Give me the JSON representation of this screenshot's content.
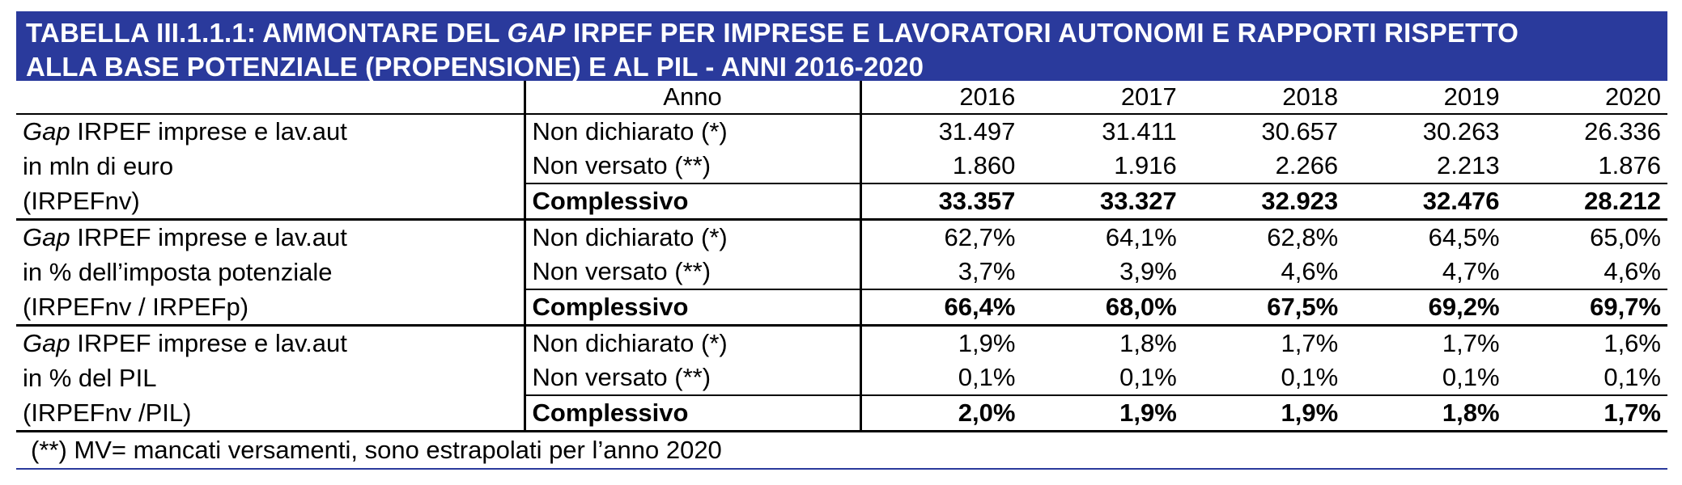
{
  "title": {
    "line1_prefix": "TABELLA III.1.1.1: AMMONTARE DEL ",
    "line1_italic": "GAP",
    "line1_suffix": " IRPEF PER IMPRESE E LAVORATORI AUTONOMI E RAPPORTI RISPETTO",
    "line2": "ALLA BASE POTENZIALE (PROPENSIONE) E AL PIL - ANNI 2016-2020"
  },
  "header": {
    "anno": "Anno",
    "years": [
      "2016",
      "2017",
      "2018",
      "2019",
      "2020"
    ]
  },
  "groups": [
    {
      "label_italic": "Gap",
      "label_line1_rest": " IRPEF imprese e lav.aut",
      "label_line2": "in mln di euro",
      "label_line3": "(IRPEFnv)",
      "rows": [
        {
          "type": "Non dichiarato (*)",
          "values": [
            "31.497",
            "31.411",
            "30.657",
            "30.263",
            "26.336"
          ]
        },
        {
          "type": "Non versato (**)",
          "values": [
            "1.860",
            "1.916",
            "2.266",
            "2.213",
            "1.876"
          ]
        },
        {
          "type": "Complessivo",
          "values": [
            "33.357",
            "33.327",
            "32.923",
            "32.476",
            "28.212"
          ]
        }
      ]
    },
    {
      "label_italic": "Gap",
      "label_line1_rest": " IRPEF imprese e lav.aut",
      "label_line2": "in % dell’imposta potenziale",
      "label_line3": "(IRPEFnv / IRPEFp)",
      "rows": [
        {
          "type": "Non dichiarato (*)",
          "values": [
            "62,7%",
            "64,1%",
            "62,8%",
            "64,5%",
            "65,0%"
          ]
        },
        {
          "type": "Non versato (**)",
          "values": [
            "3,7%",
            "3,9%",
            "4,6%",
            "4,7%",
            "4,6%"
          ]
        },
        {
          "type": "Complessivo",
          "values": [
            "66,4%",
            "68,0%",
            "67,5%",
            "69,2%",
            "69,7%"
          ]
        }
      ]
    },
    {
      "label_italic": "Gap",
      "label_line1_rest": " IRPEF imprese e lav.aut",
      "label_line2": "in % del PIL",
      "label_line3": "(IRPEFnv /PIL)",
      "rows": [
        {
          "type": "Non dichiarato (*)",
          "values": [
            "1,9%",
            "1,8%",
            "1,7%",
            "1,7%",
            "1,6%"
          ]
        },
        {
          "type": "Non versato (**)",
          "values": [
            "0,1%",
            "0,1%",
            "0,1%",
            "0,1%",
            "0,1%"
          ]
        },
        {
          "type": "Complessivo",
          "values": [
            "2,0%",
            "1,9%",
            "1,9%",
            "1,8%",
            "1,7%"
          ]
        }
      ]
    }
  ],
  "footnote": "(**) MV= mancati versamenti, sono estrapolati per l’anno 2020",
  "colors": {
    "title_background": "#2a3a9c",
    "title_text": "#ffffff"
  }
}
